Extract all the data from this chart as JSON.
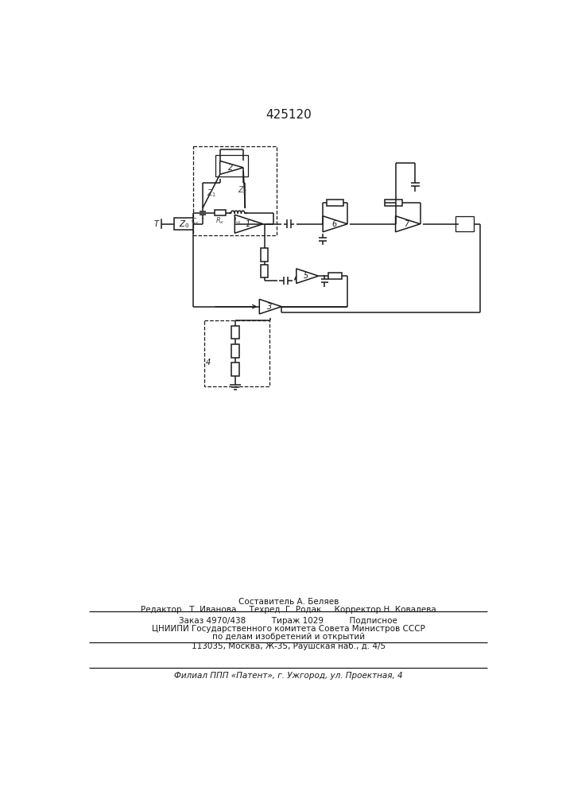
{
  "title": "425120",
  "bg_color": "#ffffff",
  "line_color": "#1a1a1a",
  "footer": {
    "line1": "Составитель А. Беляев",
    "line2": "Редактор   Т. Иванова     Техред  Г. Родак     Корректор Н. Ковалева",
    "line3": "Заказ 4970/438          Тираж 1029          Подписное",
    "line4": "ЦНИИПИ Государственного комитета Совета Министров СССР",
    "line5": "по делам изобретений и открытий",
    "line6": "113035, Москва, Ж-35, Раушская наб., д. 4/5",
    "line7": "Филиал ППП «Патент», г. Ужгород, ул. Проектная, 4"
  }
}
